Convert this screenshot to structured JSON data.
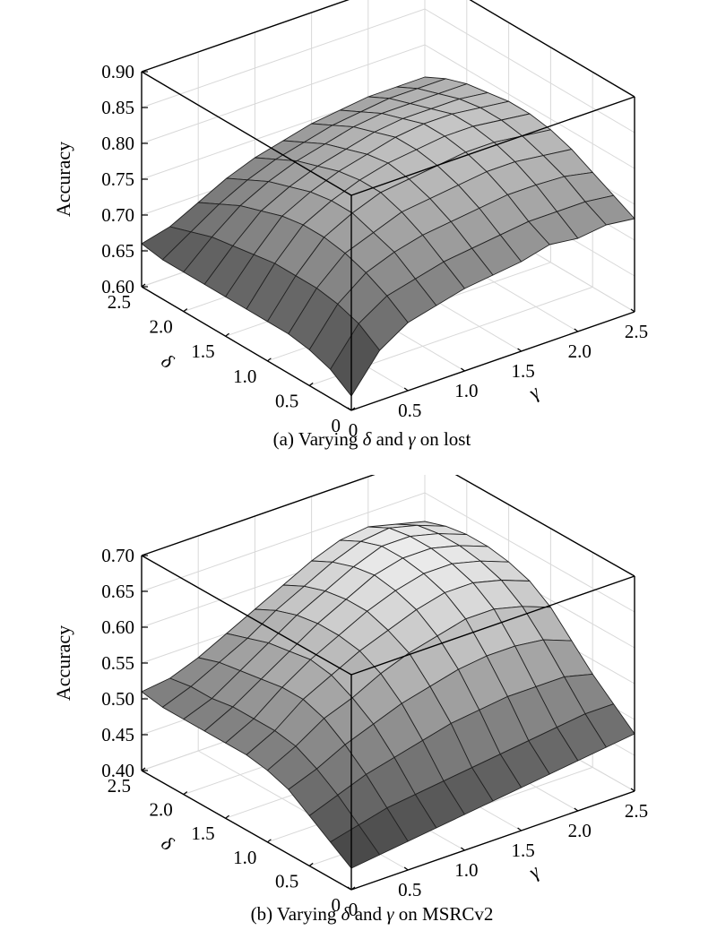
{
  "chart_data": [
    {
      "type": "surface",
      "caption_prefix": "(a) Varying ",
      "caption_delta": "δ",
      "caption_mid": " and ",
      "caption_gamma": "γ",
      "caption_suffix": " on lost",
      "zlabel": "Accuracy",
      "xlabel": "γ",
      "ylabel": "δ",
      "x_ticks": [
        "0",
        "0.5",
        "1.0",
        "1.5",
        "2.0",
        "2.5"
      ],
      "y_ticks": [
        "0",
        "0.5",
        "1.0",
        "1.5",
        "2.0",
        "2.5"
      ],
      "z_ticks": [
        "0.60",
        "0.65",
        "0.70",
        "0.75",
        "0.80",
        "0.85",
        "0.90"
      ],
      "xlim": [
        0,
        2.5
      ],
      "ylim": [
        0,
        2.5
      ],
      "zlim": [
        0.6,
        0.9
      ],
      "grid": true,
      "colormap": "gray",
      "x": [
        0,
        0.25,
        0.5,
        0.75,
        1.0,
        1.25,
        1.5,
        1.75,
        2.0,
        2.25,
        2.5
      ],
      "y": [
        0,
        0.25,
        0.5,
        0.75,
        1.0,
        1.25,
        1.5,
        1.75,
        2.0,
        2.25,
        2.5
      ],
      "z_rows_by_delta": [
        [
          0.62,
          0.67,
          0.695,
          0.705,
          0.715,
          0.72,
          0.725,
          0.735,
          0.73,
          0.735,
          0.73
        ],
        [
          0.64,
          0.69,
          0.715,
          0.725,
          0.735,
          0.74,
          0.745,
          0.75,
          0.75,
          0.75,
          0.745
        ],
        [
          0.65,
          0.7,
          0.73,
          0.745,
          0.755,
          0.76,
          0.765,
          0.77,
          0.77,
          0.768,
          0.76
        ],
        [
          0.655,
          0.705,
          0.74,
          0.755,
          0.77,
          0.775,
          0.78,
          0.785,
          0.785,
          0.78,
          0.775
        ],
        [
          0.655,
          0.705,
          0.745,
          0.765,
          0.78,
          0.785,
          0.79,
          0.795,
          0.795,
          0.79,
          0.785
        ],
        [
          0.655,
          0.705,
          0.745,
          0.765,
          0.78,
          0.79,
          0.795,
          0.8,
          0.8,
          0.795,
          0.79
        ],
        [
          0.655,
          0.7,
          0.74,
          0.76,
          0.775,
          0.785,
          0.795,
          0.8,
          0.8,
          0.795,
          0.79
        ],
        [
          0.655,
          0.695,
          0.73,
          0.75,
          0.765,
          0.775,
          0.785,
          0.79,
          0.79,
          0.79,
          0.785
        ],
        [
          0.655,
          0.69,
          0.72,
          0.74,
          0.755,
          0.765,
          0.775,
          0.78,
          0.78,
          0.78,
          0.78
        ],
        [
          0.655,
          0.68,
          0.705,
          0.725,
          0.74,
          0.75,
          0.76,
          0.765,
          0.77,
          0.77,
          0.77
        ],
        [
          0.66,
          0.67,
          0.69,
          0.71,
          0.725,
          0.735,
          0.745,
          0.75,
          0.755,
          0.755,
          0.755
        ]
      ]
    },
    {
      "type": "surface",
      "caption_prefix": "(b) Varying ",
      "caption_delta": "δ",
      "caption_mid": " and ",
      "caption_gamma": "γ",
      "caption_suffix": " on MSRCv2",
      "zlabel": "Accuracy",
      "xlabel": "γ",
      "ylabel": "δ",
      "x_ticks": [
        "0",
        "0.5",
        "1.0",
        "1.5",
        "2.0",
        "2.5"
      ],
      "y_ticks": [
        "0",
        "0.5",
        "1.0",
        "1.5",
        "2.0",
        "2.5"
      ],
      "z_ticks": [
        "0.40",
        "0.45",
        "0.50",
        "0.55",
        "0.60",
        "0.65",
        "0.70"
      ],
      "xlim": [
        0,
        2.5
      ],
      "ylim": [
        0,
        2.5
      ],
      "zlim": [
        0.4,
        0.7
      ],
      "grid": true,
      "colormap": "gray",
      "x": [
        0,
        0.25,
        0.5,
        0.75,
        1.0,
        1.25,
        1.5,
        1.75,
        2.0,
        2.25,
        2.5
      ],
      "y": [
        0,
        0.25,
        0.5,
        0.75,
        1.0,
        1.25,
        1.5,
        1.75,
        2.0,
        2.25,
        2.5
      ],
      "z_rows_by_delta": [
        [
          0.43,
          0.435,
          0.44,
          0.445,
          0.45,
          0.455,
          0.46,
          0.465,
          0.47,
          0.475,
          0.48
        ],
        [
          0.45,
          0.46,
          0.47,
          0.475,
          0.48,
          0.485,
          0.49,
          0.495,
          0.5,
          0.505,
          0.505
        ],
        [
          0.47,
          0.485,
          0.5,
          0.51,
          0.52,
          0.53,
          0.535,
          0.54,
          0.54,
          0.54,
          0.53
        ],
        [
          0.49,
          0.505,
          0.525,
          0.54,
          0.555,
          0.565,
          0.575,
          0.58,
          0.58,
          0.575,
          0.56
        ],
        [
          0.5,
          0.52,
          0.545,
          0.56,
          0.58,
          0.595,
          0.605,
          0.615,
          0.615,
          0.605,
          0.59
        ],
        [
          0.505,
          0.525,
          0.555,
          0.575,
          0.595,
          0.61,
          0.625,
          0.635,
          0.635,
          0.625,
          0.61
        ],
        [
          0.505,
          0.525,
          0.555,
          0.58,
          0.6,
          0.62,
          0.635,
          0.645,
          0.645,
          0.635,
          0.62
        ],
        [
          0.505,
          0.525,
          0.55,
          0.575,
          0.6,
          0.62,
          0.64,
          0.65,
          0.65,
          0.64,
          0.625
        ],
        [
          0.505,
          0.52,
          0.545,
          0.57,
          0.595,
          0.615,
          0.635,
          0.65,
          0.65,
          0.64,
          0.625
        ],
        [
          0.505,
          0.52,
          0.54,
          0.56,
          0.585,
          0.605,
          0.625,
          0.64,
          0.645,
          0.635,
          0.62
        ],
        [
          0.51,
          0.515,
          0.53,
          0.55,
          0.57,
          0.59,
          0.61,
          0.625,
          0.63,
          0.62,
          0.61
        ]
      ]
    }
  ]
}
